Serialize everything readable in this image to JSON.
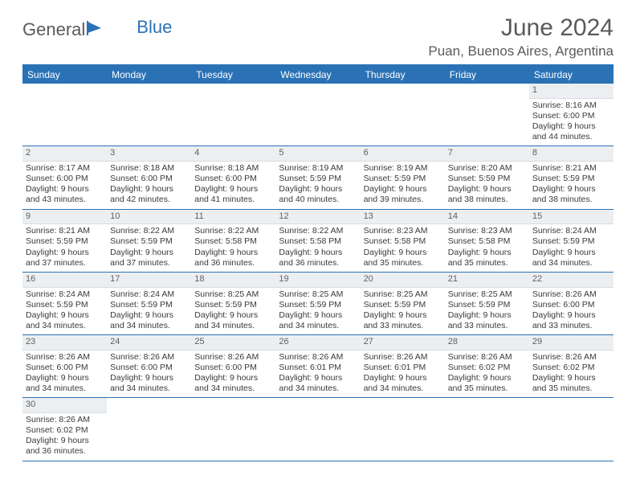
{
  "logo": {
    "text1": "General",
    "text2": "Blue"
  },
  "title": "June 2024",
  "location": "Puan, Buenos Aires, Argentina",
  "colors": {
    "accent": "#2a72b5",
    "header_text": "#5a5a5a",
    "cell_text": "#3a3a3a",
    "daynum_bg": "#eceff1"
  },
  "weekdays": [
    "Sunday",
    "Monday",
    "Tuesday",
    "Wednesday",
    "Thursday",
    "Friday",
    "Saturday"
  ],
  "weeks": [
    [
      null,
      null,
      null,
      null,
      null,
      null,
      {
        "n": "1",
        "sr": "Sunrise: 8:16 AM",
        "ss": "Sunset: 6:00 PM",
        "d1": "Daylight: 9 hours",
        "d2": "and 44 minutes."
      }
    ],
    [
      {
        "n": "2",
        "sr": "Sunrise: 8:17 AM",
        "ss": "Sunset: 6:00 PM",
        "d1": "Daylight: 9 hours",
        "d2": "and 43 minutes."
      },
      {
        "n": "3",
        "sr": "Sunrise: 8:18 AM",
        "ss": "Sunset: 6:00 PM",
        "d1": "Daylight: 9 hours",
        "d2": "and 42 minutes."
      },
      {
        "n": "4",
        "sr": "Sunrise: 8:18 AM",
        "ss": "Sunset: 6:00 PM",
        "d1": "Daylight: 9 hours",
        "d2": "and 41 minutes."
      },
      {
        "n": "5",
        "sr": "Sunrise: 8:19 AM",
        "ss": "Sunset: 5:59 PM",
        "d1": "Daylight: 9 hours",
        "d2": "and 40 minutes."
      },
      {
        "n": "6",
        "sr": "Sunrise: 8:19 AM",
        "ss": "Sunset: 5:59 PM",
        "d1": "Daylight: 9 hours",
        "d2": "and 39 minutes."
      },
      {
        "n": "7",
        "sr": "Sunrise: 8:20 AM",
        "ss": "Sunset: 5:59 PM",
        "d1": "Daylight: 9 hours",
        "d2": "and 38 minutes."
      },
      {
        "n": "8",
        "sr": "Sunrise: 8:21 AM",
        "ss": "Sunset: 5:59 PM",
        "d1": "Daylight: 9 hours",
        "d2": "and 38 minutes."
      }
    ],
    [
      {
        "n": "9",
        "sr": "Sunrise: 8:21 AM",
        "ss": "Sunset: 5:59 PM",
        "d1": "Daylight: 9 hours",
        "d2": "and 37 minutes."
      },
      {
        "n": "10",
        "sr": "Sunrise: 8:22 AM",
        "ss": "Sunset: 5:59 PM",
        "d1": "Daylight: 9 hours",
        "d2": "and 37 minutes."
      },
      {
        "n": "11",
        "sr": "Sunrise: 8:22 AM",
        "ss": "Sunset: 5:58 PM",
        "d1": "Daylight: 9 hours",
        "d2": "and 36 minutes."
      },
      {
        "n": "12",
        "sr": "Sunrise: 8:22 AM",
        "ss": "Sunset: 5:58 PM",
        "d1": "Daylight: 9 hours",
        "d2": "and 36 minutes."
      },
      {
        "n": "13",
        "sr": "Sunrise: 8:23 AM",
        "ss": "Sunset: 5:58 PM",
        "d1": "Daylight: 9 hours",
        "d2": "and 35 minutes."
      },
      {
        "n": "14",
        "sr": "Sunrise: 8:23 AM",
        "ss": "Sunset: 5:58 PM",
        "d1": "Daylight: 9 hours",
        "d2": "and 35 minutes."
      },
      {
        "n": "15",
        "sr": "Sunrise: 8:24 AM",
        "ss": "Sunset: 5:59 PM",
        "d1": "Daylight: 9 hours",
        "d2": "and 34 minutes."
      }
    ],
    [
      {
        "n": "16",
        "sr": "Sunrise: 8:24 AM",
        "ss": "Sunset: 5:59 PM",
        "d1": "Daylight: 9 hours",
        "d2": "and 34 minutes."
      },
      {
        "n": "17",
        "sr": "Sunrise: 8:24 AM",
        "ss": "Sunset: 5:59 PM",
        "d1": "Daylight: 9 hours",
        "d2": "and 34 minutes."
      },
      {
        "n": "18",
        "sr": "Sunrise: 8:25 AM",
        "ss": "Sunset: 5:59 PM",
        "d1": "Daylight: 9 hours",
        "d2": "and 34 minutes."
      },
      {
        "n": "19",
        "sr": "Sunrise: 8:25 AM",
        "ss": "Sunset: 5:59 PM",
        "d1": "Daylight: 9 hours",
        "d2": "and 34 minutes."
      },
      {
        "n": "20",
        "sr": "Sunrise: 8:25 AM",
        "ss": "Sunset: 5:59 PM",
        "d1": "Daylight: 9 hours",
        "d2": "and 33 minutes."
      },
      {
        "n": "21",
        "sr": "Sunrise: 8:25 AM",
        "ss": "Sunset: 5:59 PM",
        "d1": "Daylight: 9 hours",
        "d2": "and 33 minutes."
      },
      {
        "n": "22",
        "sr": "Sunrise: 8:26 AM",
        "ss": "Sunset: 6:00 PM",
        "d1": "Daylight: 9 hours",
        "d2": "and 33 minutes."
      }
    ],
    [
      {
        "n": "23",
        "sr": "Sunrise: 8:26 AM",
        "ss": "Sunset: 6:00 PM",
        "d1": "Daylight: 9 hours",
        "d2": "and 34 minutes."
      },
      {
        "n": "24",
        "sr": "Sunrise: 8:26 AM",
        "ss": "Sunset: 6:00 PM",
        "d1": "Daylight: 9 hours",
        "d2": "and 34 minutes."
      },
      {
        "n": "25",
        "sr": "Sunrise: 8:26 AM",
        "ss": "Sunset: 6:00 PM",
        "d1": "Daylight: 9 hours",
        "d2": "and 34 minutes."
      },
      {
        "n": "26",
        "sr": "Sunrise: 8:26 AM",
        "ss": "Sunset: 6:01 PM",
        "d1": "Daylight: 9 hours",
        "d2": "and 34 minutes."
      },
      {
        "n": "27",
        "sr": "Sunrise: 8:26 AM",
        "ss": "Sunset: 6:01 PM",
        "d1": "Daylight: 9 hours",
        "d2": "and 34 minutes."
      },
      {
        "n": "28",
        "sr": "Sunrise: 8:26 AM",
        "ss": "Sunset: 6:02 PM",
        "d1": "Daylight: 9 hours",
        "d2": "and 35 minutes."
      },
      {
        "n": "29",
        "sr": "Sunrise: 8:26 AM",
        "ss": "Sunset: 6:02 PM",
        "d1": "Daylight: 9 hours",
        "d2": "and 35 minutes."
      }
    ],
    [
      {
        "n": "30",
        "sr": "Sunrise: 8:26 AM",
        "ss": "Sunset: 6:02 PM",
        "d1": "Daylight: 9 hours",
        "d2": "and 36 minutes."
      },
      null,
      null,
      null,
      null,
      null,
      null
    ]
  ]
}
